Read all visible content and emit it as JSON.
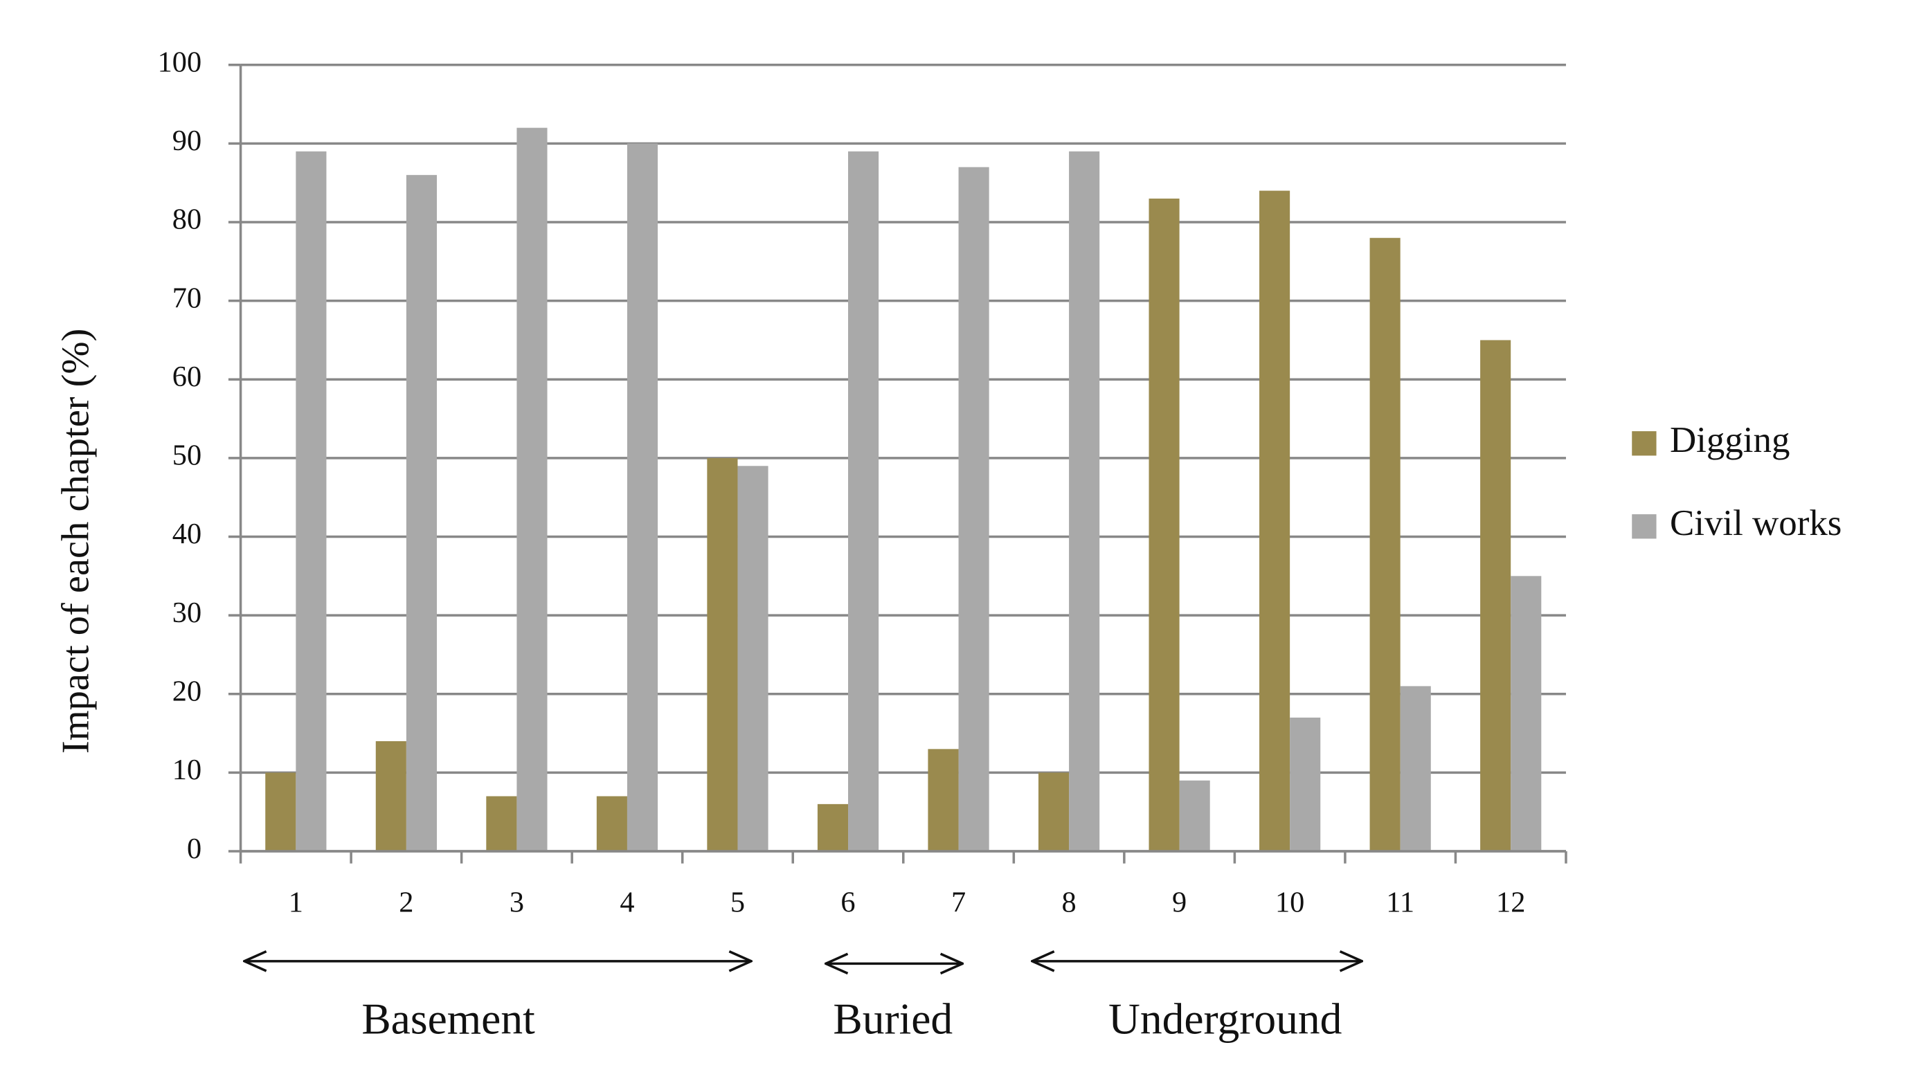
{
  "chart_data": {
    "type": "bar",
    "y_label": "Impact of each chapter (%)",
    "categories": [
      "1",
      "2",
      "3",
      "4",
      "5",
      "6",
      "7",
      "8",
      "9",
      "10",
      "11",
      "12"
    ],
    "series": [
      {
        "name": "Digging",
        "color": "#9a8a4e",
        "values": [
          10,
          14,
          7,
          7,
          50,
          6,
          13,
          10,
          83,
          84,
          78,
          65
        ]
      },
      {
        "name": "Civil works",
        "color": "#a9a9a9",
        "values": [
          89,
          86,
          92,
          90,
          49,
          89,
          87,
          89,
          9,
          17,
          21,
          35
        ]
      }
    ],
    "ylim": [
      0,
      100
    ],
    "yticks": [
      0,
      10,
      20,
      30,
      40,
      50,
      60,
      70,
      80,
      90,
      100
    ],
    "grid": true,
    "legend": "right",
    "annotations": [
      "Basement",
      "Buried",
      "Underground"
    ]
  }
}
